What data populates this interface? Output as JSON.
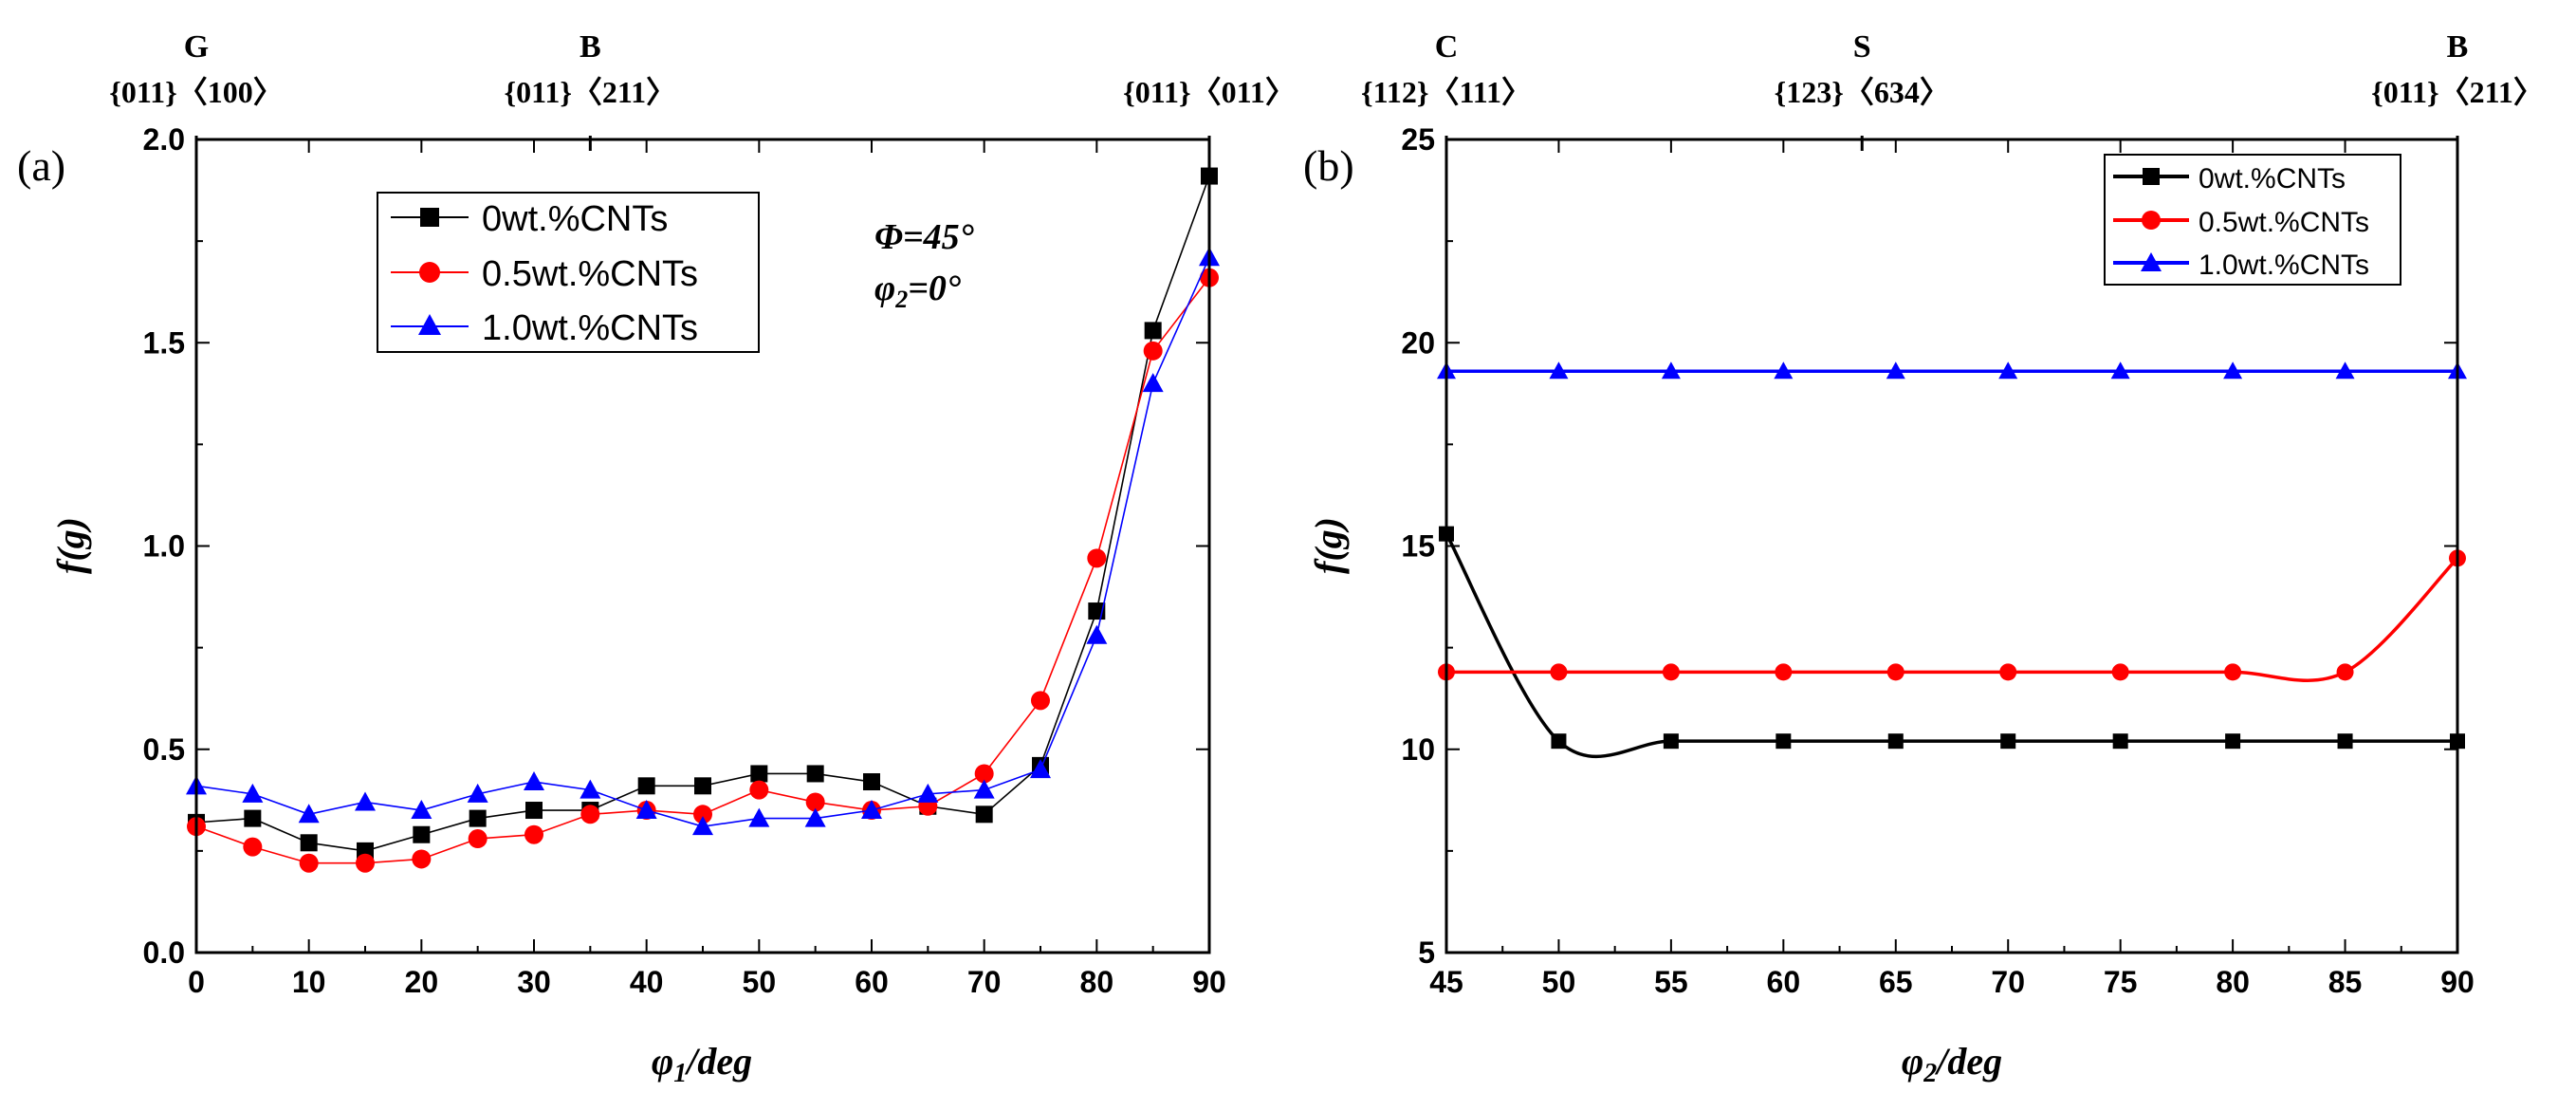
{
  "chart_data": [
    {
      "panel_label": "(a)",
      "type": "line",
      "xlabel": "φ1/deg",
      "xlabel_main": "φ",
      "xlabel_sub": "1",
      "xlabel_tail": "/deg",
      "ylabel": "f(g)",
      "xlim": [
        0,
        90
      ],
      "ylim": [
        0,
        2.0
      ],
      "x_ticks": [
        0,
        10,
        20,
        30,
        40,
        50,
        60,
        70,
        80,
        90
      ],
      "y_ticks": [
        0.0,
        0.5,
        1.0,
        1.5,
        2.0
      ],
      "y_tick_labels": [
        "0.0",
        "0.5",
        "1.0",
        "1.5",
        "2.0"
      ],
      "x": [
        0,
        5,
        10,
        15,
        20,
        25,
        30,
        35,
        40,
        45,
        50,
        55,
        60,
        65,
        70,
        75,
        80,
        85,
        90
      ],
      "series": [
        {
          "name": "0wt.%CNTs",
          "color": "#000000",
          "marker": "square",
          "values": [
            0.32,
            0.33,
            0.27,
            0.25,
            0.29,
            0.33,
            0.35,
            0.35,
            0.41,
            0.41,
            0.44,
            0.44,
            0.42,
            0.36,
            0.34,
            0.46,
            0.84,
            1.53,
            1.91
          ]
        },
        {
          "name": "0.5wt.%CNTs",
          "color": "#ff0000",
          "marker": "circle",
          "values": [
            0.31,
            0.26,
            0.22,
            0.22,
            0.23,
            0.28,
            0.29,
            0.34,
            0.35,
            0.34,
            0.4,
            0.37,
            0.35,
            0.36,
            0.44,
            0.62,
            0.97,
            1.48,
            1.66
          ]
        },
        {
          "name": "1.0wt.%CNTs",
          "color": "#0000ff",
          "marker": "triangle",
          "values": [
            0.41,
            0.39,
            0.34,
            0.37,
            0.35,
            0.39,
            0.42,
            0.4,
            0.35,
            0.31,
            0.33,
            0.33,
            0.35,
            0.39,
            0.4,
            0.45,
            0.78,
            1.4,
            1.71
          ]
        }
      ],
      "legend_position": "upper-left",
      "annotation_phi": "Φ=45°",
      "annotation_phi2_main": "φ",
      "annotation_phi2_sub": "2",
      "annotation_phi2_tail": "=0°",
      "top_annotations": [
        {
          "letter": "G",
          "indices": "{011}〈100〉",
          "x": 0
        },
        {
          "letter": "B",
          "indices": "{011}〈211〉",
          "x": 35
        },
        {
          "letter": "",
          "indices": "{011}〈011〉",
          "x": 90
        }
      ]
    },
    {
      "panel_label": "(b)",
      "type": "line",
      "xlabel": "φ2/deg",
      "xlabel_main": "φ",
      "xlabel_sub": "2",
      "xlabel_tail": "/deg",
      "ylabel": "f(g)",
      "xlim": [
        45,
        90
      ],
      "ylim": [
        5,
        25
      ],
      "x_ticks": [
        45,
        50,
        55,
        60,
        65,
        70,
        75,
        80,
        85,
        90
      ],
      "y_ticks": [
        5,
        10,
        15,
        20,
        25
      ],
      "y_tick_labels": [
        "5",
        "10",
        "15",
        "20",
        "25"
      ],
      "x": [
        45,
        50,
        55,
        60,
        65,
        70,
        75,
        80,
        85,
        90
      ],
      "series": [
        {
          "name": "0wt.%CNTs",
          "color": "#000000",
          "marker": "square",
          "values": [
            15.3,
            10.2,
            10.2,
            10.2,
            10.2,
            10.2,
            10.2,
            10.2,
            10.2,
            10.2
          ]
        },
        {
          "name": "0.5wt.%CNTs",
          "color": "#ff0000",
          "marker": "circle",
          "values": [
            11.9,
            11.9,
            11.9,
            11.9,
            11.9,
            11.9,
            11.9,
            11.9,
            11.9,
            14.7
          ]
        },
        {
          "name": "1.0wt.%CNTs",
          "color": "#0000ff",
          "marker": "triangle",
          "values": [
            19.3,
            19.3,
            19.3,
            19.3,
            19.3,
            19.3,
            19.3,
            19.3,
            19.3,
            19.3
          ]
        }
      ],
      "legend_position": "upper-right",
      "top_annotations": [
        {
          "letter": "C",
          "indices": "{112}〈111〉",
          "x": 45
        },
        {
          "letter": "S",
          "indices": "{123}〈634〉",
          "x": 63.5
        },
        {
          "letter": "B",
          "indices": "{011}〈211〉",
          "x": 90
        }
      ]
    }
  ]
}
